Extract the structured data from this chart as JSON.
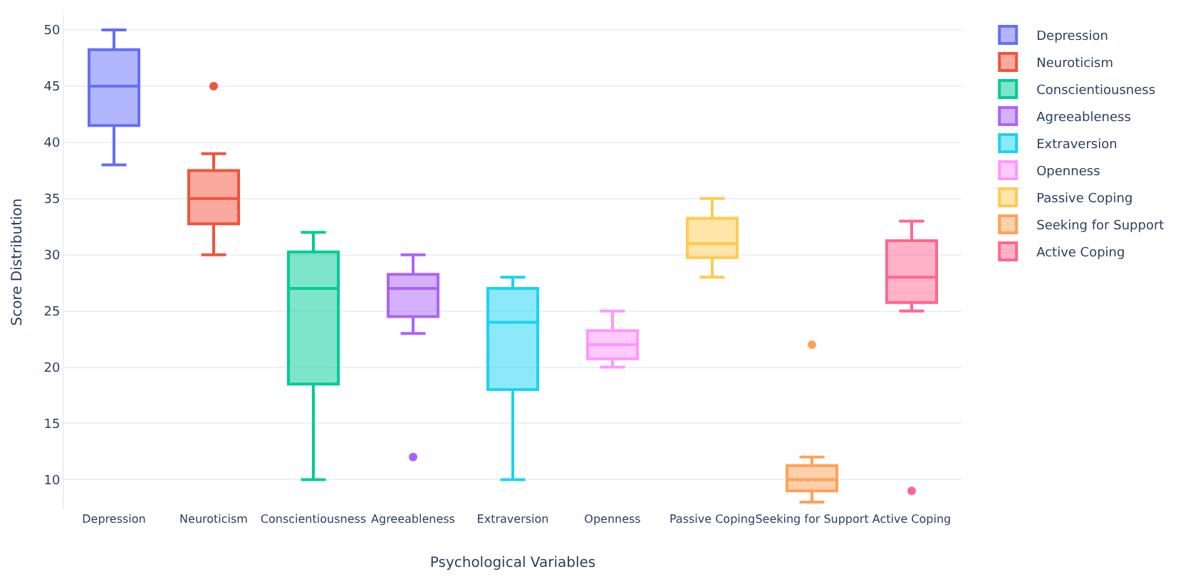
{
  "chart_data": {
    "type": "box",
    "xlabel": "Psychological Variables",
    "ylabel": "Score Distribution",
    "categories": [
      "Depression",
      "Neuroticism",
      "Conscientiousness",
      "Agreeableness",
      "Extraversion",
      "Openness",
      "Passive Coping",
      "Seeking for Support",
      "Active Coping"
    ],
    "ylim": [
      7.3,
      51.4
    ],
    "yticks": [
      10,
      15,
      20,
      25,
      30,
      35,
      40,
      45,
      50
    ],
    "grid": "y",
    "legend": "top right",
    "series": [
      {
        "name": "Depression",
        "color": "#636efa",
        "boxes": [
          {
            "low": 38,
            "q1": 41.5,
            "median": 45,
            "q3": 48.25,
            "high": 50
          },
          null,
          null,
          null,
          null,
          null,
          null,
          null,
          null
        ]
      },
      {
        "name": "Neuroticism",
        "color": "#ef553b",
        "boxes": [
          null,
          {
            "low": 30,
            "q1": 32.75,
            "median": 35,
            "q3": 37.5,
            "high": 39,
            "outliers": [
              45
            ]
          },
          null,
          null,
          null,
          null,
          null,
          null,
          null
        ]
      },
      {
        "name": "Conscientiousness",
        "color": "#00cc96",
        "boxes": [
          null,
          null,
          {
            "low": 10,
            "q1": 18.5,
            "median": 27,
            "q3": 30.25,
            "high": 32
          },
          null,
          null,
          null,
          null,
          null,
          null
        ]
      },
      {
        "name": "Agreeableness",
        "color": "#ab63fa",
        "boxes": [
          null,
          null,
          null,
          {
            "low": 23,
            "q1": 24.5,
            "median": 27,
            "q3": 28.25,
            "high": 30,
            "outliers": [
              12
            ]
          },
          null,
          null,
          null,
          null,
          null
        ]
      },
      {
        "name": "Extraversion",
        "color": "#19d3f3",
        "boxes": [
          null,
          null,
          null,
          null,
          {
            "low": 10,
            "q1": 18,
            "median": 24,
            "q3": 27,
            "high": 28
          },
          null,
          null,
          null,
          null
        ]
      },
      {
        "name": "Openness",
        "color": "#ff97ff",
        "boxes": [
          null,
          null,
          null,
          null,
          null,
          {
            "low": 20,
            "q1": 20.75,
            "median": 22,
            "q3": 23.25,
            "high": 25
          },
          null,
          null,
          null
        ]
      },
      {
        "name": "Passive Coping",
        "color": "#fecb52",
        "boxes": [
          null,
          null,
          null,
          null,
          null,
          null,
          {
            "low": 28,
            "q1": 29.75,
            "median": 31,
            "q3": 33.25,
            "high": 35
          },
          null,
          null
        ]
      },
      {
        "name": "Seeking for Support",
        "color": "#ffa15a",
        "boxes": [
          null,
          null,
          null,
          null,
          null,
          null,
          null,
          {
            "low": 8,
            "q1": 9,
            "median": 10,
            "q3": 11.25,
            "high": 12,
            "outliers": [
              22
            ]
          },
          null
        ]
      },
      {
        "name": "Active Coping",
        "color": "#ff6692",
        "boxes": [
          null,
          null,
          null,
          null,
          null,
          null,
          null,
          null,
          {
            "low": 25,
            "q1": 25.75,
            "median": 28,
            "q3": 31.25,
            "high": 33,
            "outliers": [
              9
            ]
          }
        ]
      }
    ]
  }
}
